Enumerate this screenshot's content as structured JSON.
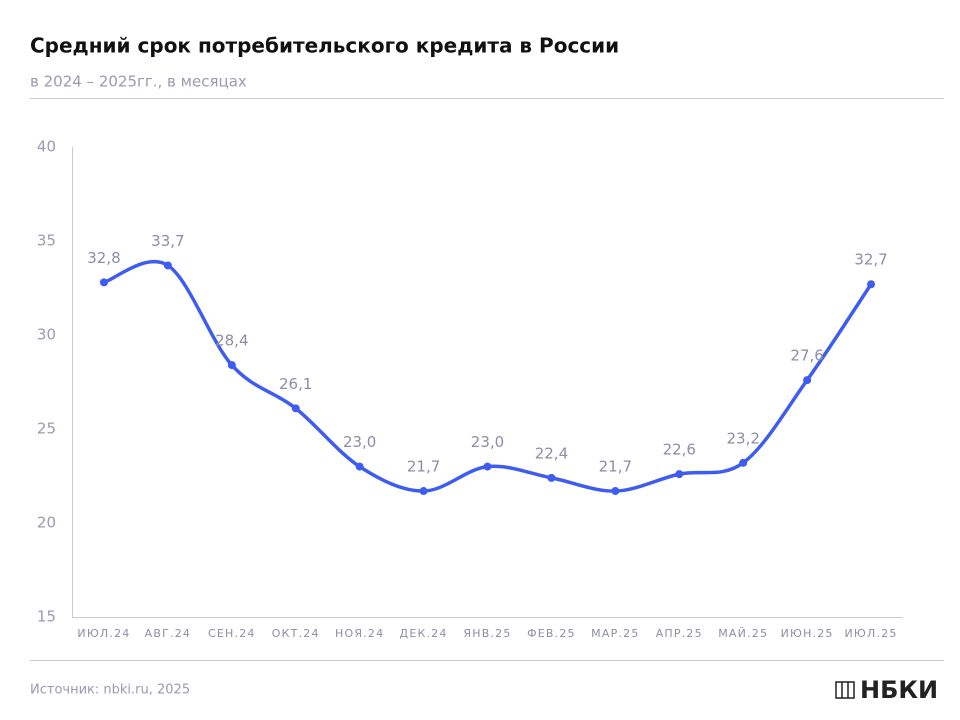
{
  "chart_data": {
    "type": "line",
    "title": "Средний срок потребительского кредита в России",
    "subtitle": "в 2024 – 2025гг., в месяцах",
    "source": "Источник: nbki.ru, 2025",
    "logo": "НБКИ",
    "categories": [
      "ИЮЛ.24",
      "АВГ.24",
      "СЕН.24",
      "ОКТ.24",
      "НОЯ.24",
      "ДЕК.24",
      "ЯНВ.25",
      "ФЕВ.25",
      "МАР.25",
      "АПР.25",
      "МАЙ.25",
      "ИЮН.25",
      "ИЮЛ.25"
    ],
    "series": [
      {
        "color": "#3f5cf0",
        "values": [
          32.8,
          33.7,
          28.4,
          26.1,
          23.0,
          21.7,
          23.0,
          22.4,
          21.7,
          22.6,
          23.2,
          27.6,
          32.7
        ],
        "value_labels": [
          "32,8",
          "33,7",
          "28,4",
          "26,1",
          "23,0",
          "21,7",
          "23,0",
          "22,4",
          "21,7",
          "22,6",
          "23,2",
          "27,6",
          "32,7"
        ]
      }
    ],
    "ylim": [
      15,
      40
    ],
    "yticks": [
      15,
      20,
      25,
      30,
      35,
      40
    ],
    "grid": false
  }
}
